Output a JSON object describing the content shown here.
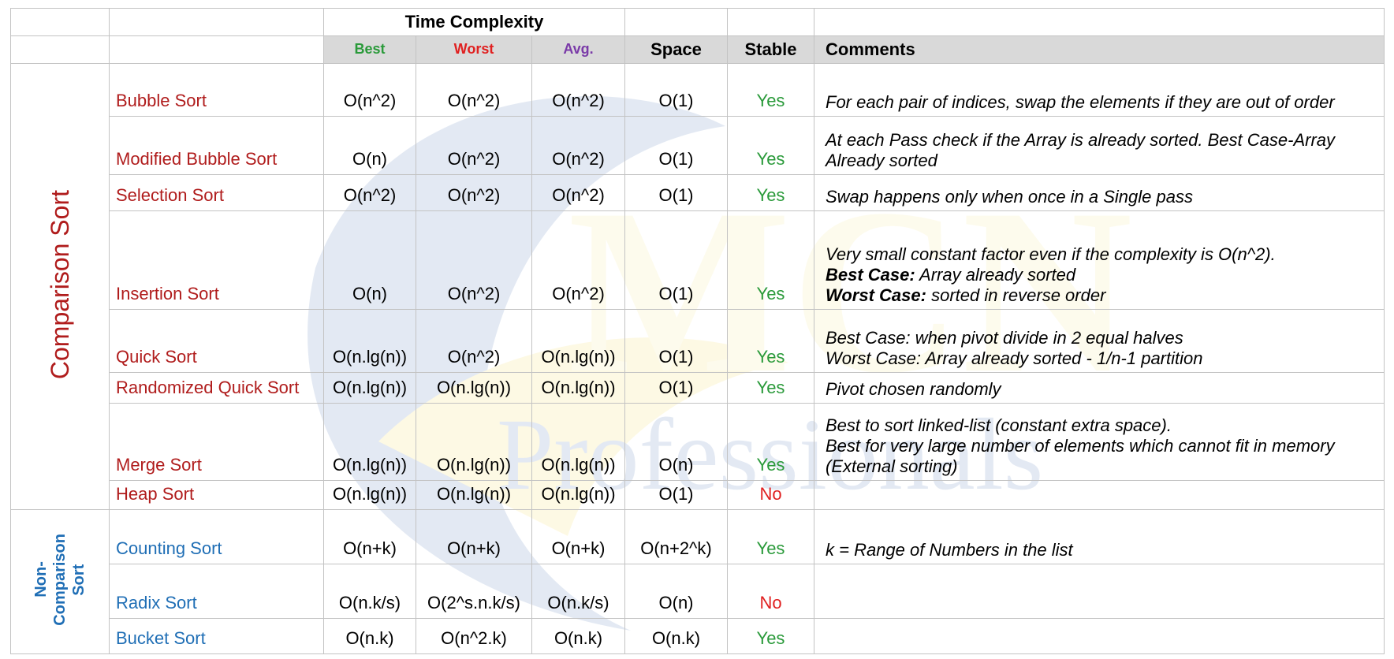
{
  "header": {
    "time_complexity": "Time Complexity",
    "best": "Best",
    "worst": "Worst",
    "avg": "Avg.",
    "space": "Space",
    "stable": "Stable",
    "comments": "Comments"
  },
  "groups": {
    "comparison": "Comparison Sort",
    "non_comparison": "Non-\nComparison\nSort"
  },
  "colors": {
    "best": "#2a9a3a",
    "worst": "#e02020",
    "avg": "#7a3aa8",
    "yes": "#2a9a3a",
    "no": "#e02020",
    "comparison": "#b01c1c",
    "non_comparison": "#1f6eb5"
  },
  "rows": [
    {
      "name": "Bubble Sort",
      "best": "O(n^2)",
      "worst": "O(n^2)",
      "avg": "O(n^2)",
      "space": "O(1)",
      "stable": "Yes",
      "comment": [
        "For each pair of indices, swap the elements if they are out of order"
      ]
    },
    {
      "name": "Modified Bubble Sort",
      "best": "O(n)",
      "worst": "O(n^2)",
      "avg": "O(n^2)",
      "space": "O(1)",
      "stable": "Yes",
      "comment": [
        "At each Pass check if the Array is already sorted. Best Case-Array Already sorted"
      ]
    },
    {
      "name": "Selection Sort",
      "best": "O(n^2)",
      "worst": "O(n^2)",
      "avg": "O(n^2)",
      "space": "O(1)",
      "stable": "Yes",
      "comment": [
        "Swap happens only when once in a Single pass"
      ]
    },
    {
      "name": "Insertion Sort",
      "best": "O(n)",
      "worst": "O(n^2)",
      "avg": "O(n^2)",
      "space": "O(1)",
      "stable": "Yes",
      "comment": [
        "Very small constant factor even if the complexity is O(n^2)."
      ],
      "best_case_label": "Best Case:",
      "best_case_text": " Array already sorted",
      "worst_case_label": "Worst Case:",
      "worst_case_text": " sorted in reverse order"
    },
    {
      "name": "Quick Sort",
      "best": "O(n.lg(n))",
      "worst": "O(n^2)",
      "avg": "O(n.lg(n))",
      "space": "O(1)",
      "stable": "Yes",
      "comment": [
        "Best Case: when pivot divide in 2 equal halves",
        "Worst Case: Array already sorted - 1/n-1 partition"
      ]
    },
    {
      "name": "Randomized Quick Sort",
      "best": "O(n.lg(n))",
      "worst": "O(n.lg(n))",
      "avg": "O(n.lg(n))",
      "space": "O(1)",
      "stable": "Yes",
      "comment": [
        "Pivot chosen randomly"
      ]
    },
    {
      "name": "Merge Sort",
      "best": "O(n.lg(n))",
      "worst": "O(n.lg(n))",
      "avg": "O(n.lg(n))",
      "space": "O(n)",
      "stable": "Yes",
      "comment": [
        "Best to sort linked-list (constant extra space).",
        "Best for very large number of elements which cannot fit in memory (External sorting)"
      ]
    },
    {
      "name": "Heap Sort",
      "best": "O(n.lg(n))",
      "worst": "O(n.lg(n))",
      "avg": "O(n.lg(n))",
      "space": "O(1)",
      "stable": "No",
      "comment": [
        ""
      ]
    },
    {
      "name": "Counting Sort",
      "best": "O(n+k)",
      "worst": "O(n+k)",
      "avg": "O(n+k)",
      "space": "O(n+2^k)",
      "stable": "Yes",
      "comment": [
        "k = Range of Numbers in the list"
      ]
    },
    {
      "name": "Radix Sort",
      "best": "O(n.k/s)",
      "worst": "O(2^s.n.k/s)",
      "avg": "O(n.k/s)",
      "space": "O(n)",
      "stable": "No",
      "comment": [
        ""
      ]
    },
    {
      "name": "Bucket Sort",
      "best": "O(n.k)",
      "worst": "O(n^2.k)",
      "avg": "O(n.k)",
      "space": "O(n.k)",
      "stable": "Yes",
      "comment": [
        ""
      ]
    }
  ],
  "watermark": {
    "text": "Professionals",
    "logo": "MCN"
  }
}
